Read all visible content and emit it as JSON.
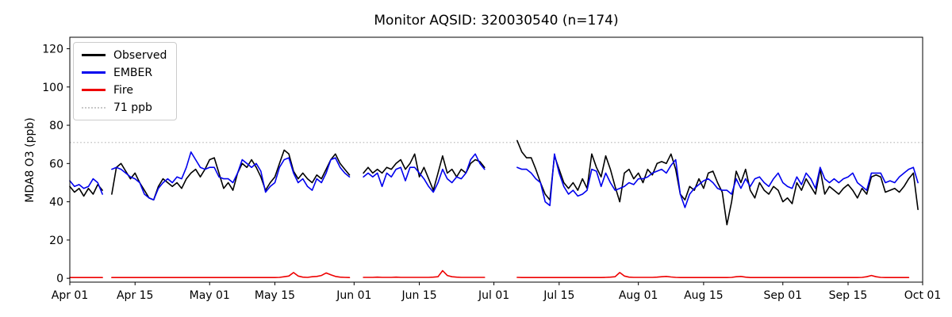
{
  "figure": {
    "kind": "matplotlib-line-figure"
  },
  "chart_data": {
    "type": "line",
    "title": "Monitor AQSID: 320030540 (n=174)",
    "xlabel": "",
    "ylabel": "MDA8 O3 (ppb)",
    "ylim": [
      -2,
      126
    ],
    "yticks": [
      0,
      20,
      40,
      60,
      80,
      100,
      120
    ],
    "grid": false,
    "x_axis": {
      "unit": "days since Apr 01",
      "max_day": 183,
      "tick_days": [
        0,
        14,
        30,
        44,
        61,
        75,
        91,
        105,
        122,
        136,
        153,
        167,
        183
      ],
      "tick_labels": [
        "Apr 01",
        "Apr 15",
        "May 01",
        "May 15",
        "Jun 01",
        "Jun 15",
        "Jul 01",
        "Jul 15",
        "Aug 01",
        "Aug 15",
        "Sep 01",
        "Sep 15",
        "Oct 01"
      ]
    },
    "reference_line": {
      "value": 71,
      "label": "71 ppb",
      "color": "#c9c9c9",
      "linestyle": "dotted"
    },
    "legend": {
      "position": "upper-left",
      "items": [
        {
          "label": "Observed",
          "color": "#000000",
          "linestyle": "solid"
        },
        {
          "label": "EMBER",
          "color": "#0000ee",
          "linestyle": "solid"
        },
        {
          "label": "Fire",
          "color": "#ee0000",
          "linestyle": "solid"
        },
        {
          "label": "71 ppb",
          "color": "#c9c9c9",
          "linestyle": "dotted"
        }
      ]
    },
    "series": [
      {
        "name": "Observed",
        "color": "#000000",
        "linewidth": 1.6,
        "values": [
          48,
          45,
          47,
          43,
          47,
          44,
          49,
          46,
          null,
          44,
          58,
          60,
          56,
          52,
          55,
          50,
          46,
          42,
          41,
          48,
          52,
          50,
          48,
          50,
          47,
          52,
          55,
          57,
          53,
          57,
          62,
          63,
          55,
          47,
          50,
          46,
          55,
          60,
          58,
          62,
          58,
          53,
          46,
          50,
          53,
          60,
          67,
          65,
          56,
          52,
          55,
          52,
          50,
          54,
          52,
          57,
          62,
          65,
          60,
          57,
          54,
          null,
          null,
          55,
          58,
          55,
          57,
          55,
          58,
          57,
          60,
          62,
          57,
          60,
          65,
          53,
          58,
          52,
          46,
          55,
          64,
          55,
          57,
          53,
          57,
          55,
          60,
          62,
          61,
          58,
          null,
          null,
          null,
          null,
          null,
          null,
          72,
          66,
          63,
          63,
          57,
          50,
          44,
          41,
          64,
          57,
          50,
          47,
          50,
          46,
          52,
          47,
          65,
          58,
          53,
          64,
          57,
          48,
          40,
          55,
          57,
          52,
          55,
          50,
          57,
          54,
          60,
          61,
          60,
          65,
          57,
          44,
          41,
          48,
          46,
          52,
          47,
          55,
          56,
          50,
          45,
          28,
          40,
          56,
          50,
          57,
          46,
          42,
          50,
          46,
          44,
          48,
          46,
          40,
          42,
          39,
          50,
          46,
          52,
          48,
          44,
          57,
          44,
          48,
          46,
          44,
          47,
          49,
          46,
          42,
          47,
          44,
          53,
          54,
          53,
          45,
          46,
          47,
          45,
          48,
          52,
          55,
          36,
          null
        ]
      },
      {
        "name": "EMBER",
        "color": "#0000ee",
        "linewidth": 1.6,
        "values": [
          51,
          48,
          49,
          47,
          48,
          52,
          50,
          44,
          null,
          57,
          58,
          57,
          55,
          53,
          52,
          50,
          44,
          42,
          41,
          47,
          50,
          52,
          50,
          53,
          52,
          58,
          66,
          62,
          58,
          57,
          58,
          58,
          53,
          52,
          52,
          50,
          55,
          62,
          60,
          58,
          60,
          56,
          45,
          48,
          50,
          58,
          62,
          63,
          55,
          50,
          52,
          48,
          46,
          52,
          50,
          55,
          62,
          63,
          58,
          55,
          53,
          null,
          null,
          53,
          55,
          53,
          55,
          48,
          55,
          53,
          57,
          58,
          51,
          58,
          58,
          55,
          52,
          48,
          45,
          50,
          57,
          52,
          50,
          53,
          52,
          55,
          62,
          65,
          60,
          57,
          null,
          null,
          null,
          null,
          null,
          null,
          58,
          57,
          57,
          55,
          52,
          50,
          40,
          38,
          65,
          55,
          48,
          44,
          46,
          43,
          44,
          46,
          57,
          56,
          48,
          55,
          50,
          46,
          47,
          48,
          50,
          49,
          52,
          52,
          53,
          55,
          56,
          57,
          55,
          59,
          62,
          44,
          37,
          44,
          47,
          49,
          51,
          52,
          50,
          47,
          46,
          46,
          44,
          52,
          47,
          52,
          48,
          52,
          53,
          50,
          48,
          52,
          55,
          50,
          48,
          47,
          53,
          49,
          55,
          52,
          47,
          58,
          52,
          50,
          52,
          50,
          52,
          53,
          55,
          50,
          48,
          46,
          55,
          55,
          55,
          50,
          51,
          50,
          53,
          55,
          57,
          58,
          50,
          null
        ]
      },
      {
        "name": "Fire",
        "color": "#ee0000",
        "linewidth": 1.6,
        "values": [
          0.4,
          0.4,
          0.4,
          0.4,
          0.4,
          0.4,
          0.4,
          0.4,
          null,
          0.4,
          0.4,
          0.4,
          0.4,
          0.4,
          0.4,
          0.4,
          0.4,
          0.4,
          0.4,
          0.4,
          0.4,
          0.4,
          0.4,
          0.4,
          0.4,
          0.4,
          0.4,
          0.4,
          0.4,
          0.4,
          0.4,
          0.4,
          0.4,
          0.4,
          0.4,
          0.4,
          0.4,
          0.4,
          0.4,
          0.4,
          0.4,
          0.4,
          0.4,
          0.4,
          0.4,
          0.5,
          0.8,
          1.2,
          3.0,
          1.2,
          0.6,
          0.5,
          0.8,
          1.0,
          1.5,
          2.8,
          1.8,
          1.0,
          0.6,
          0.5,
          0.4,
          null,
          null,
          0.5,
          0.5,
          0.5,
          0.6,
          0.5,
          0.5,
          0.5,
          0.6,
          0.5,
          0.5,
          0.5,
          0.5,
          0.5,
          0.5,
          0.5,
          0.6,
          0.8,
          4.0,
          1.5,
          0.8,
          0.6,
          0.5,
          0.5,
          0.5,
          0.5,
          0.5,
          0.5,
          null,
          null,
          null,
          null,
          null,
          null,
          0.5,
          0.4,
          0.4,
          0.4,
          0.4,
          0.4,
          0.4,
          0.4,
          0.4,
          0.4,
          0.4,
          0.4,
          0.4,
          0.4,
          0.4,
          0.4,
          0.4,
          0.4,
          0.4,
          0.5,
          0.6,
          0.8,
          3.0,
          1.2,
          0.6,
          0.5,
          0.5,
          0.5,
          0.5,
          0.5,
          0.6,
          0.8,
          1.0,
          0.7,
          0.5,
          0.4,
          0.4,
          0.4,
          0.4,
          0.4,
          0.4,
          0.4,
          0.4,
          0.4,
          0.4,
          0.4,
          0.5,
          0.8,
          1.0,
          0.6,
          0.4,
          0.4,
          0.4,
          0.4,
          0.4,
          0.4,
          0.4,
          0.4,
          0.4,
          0.4,
          0.4,
          0.4,
          0.4,
          0.4,
          0.4,
          0.4,
          0.4,
          0.4,
          0.4,
          0.4,
          0.4,
          0.4,
          0.4,
          0.4,
          0.5,
          0.8,
          1.5,
          0.8,
          0.5,
          0.4,
          0.4,
          0.4,
          0.4,
          0.4,
          0.4,
          null
        ]
      }
    ]
  }
}
